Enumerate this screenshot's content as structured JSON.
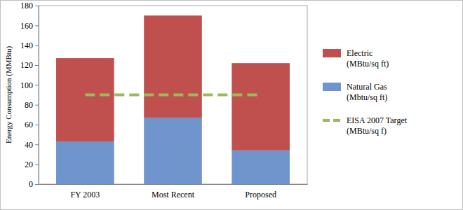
{
  "chart_data": {
    "type": "bar",
    "stacked": true,
    "categories": [
      "FY 2003",
      "Most Recent",
      "Proposed"
    ],
    "ylabel": "Energy Consumption (MMBtu)",
    "ylim": [
      0,
      180
    ],
    "yticks": [
      0,
      20,
      40,
      60,
      80,
      100,
      120,
      140,
      160,
      180
    ],
    "grid": false,
    "legend": "right",
    "series": [
      {
        "name": "Electric (MBtu/sq ft)",
        "color": "#c0504d",
        "values": [
          84,
          103,
          88
        ]
      },
      {
        "name": "Natural Gas (Mbtu/sq ft)",
        "color": "#7094cc",
        "values": [
          43,
          67,
          34
        ]
      },
      {
        "name": "EISA 2007 Target (MBtu/sq f)",
        "type": "line",
        "color": "#9bbb59",
        "line_style": "dashed",
        "values": [
          90,
          90,
          90
        ]
      }
    ]
  }
}
